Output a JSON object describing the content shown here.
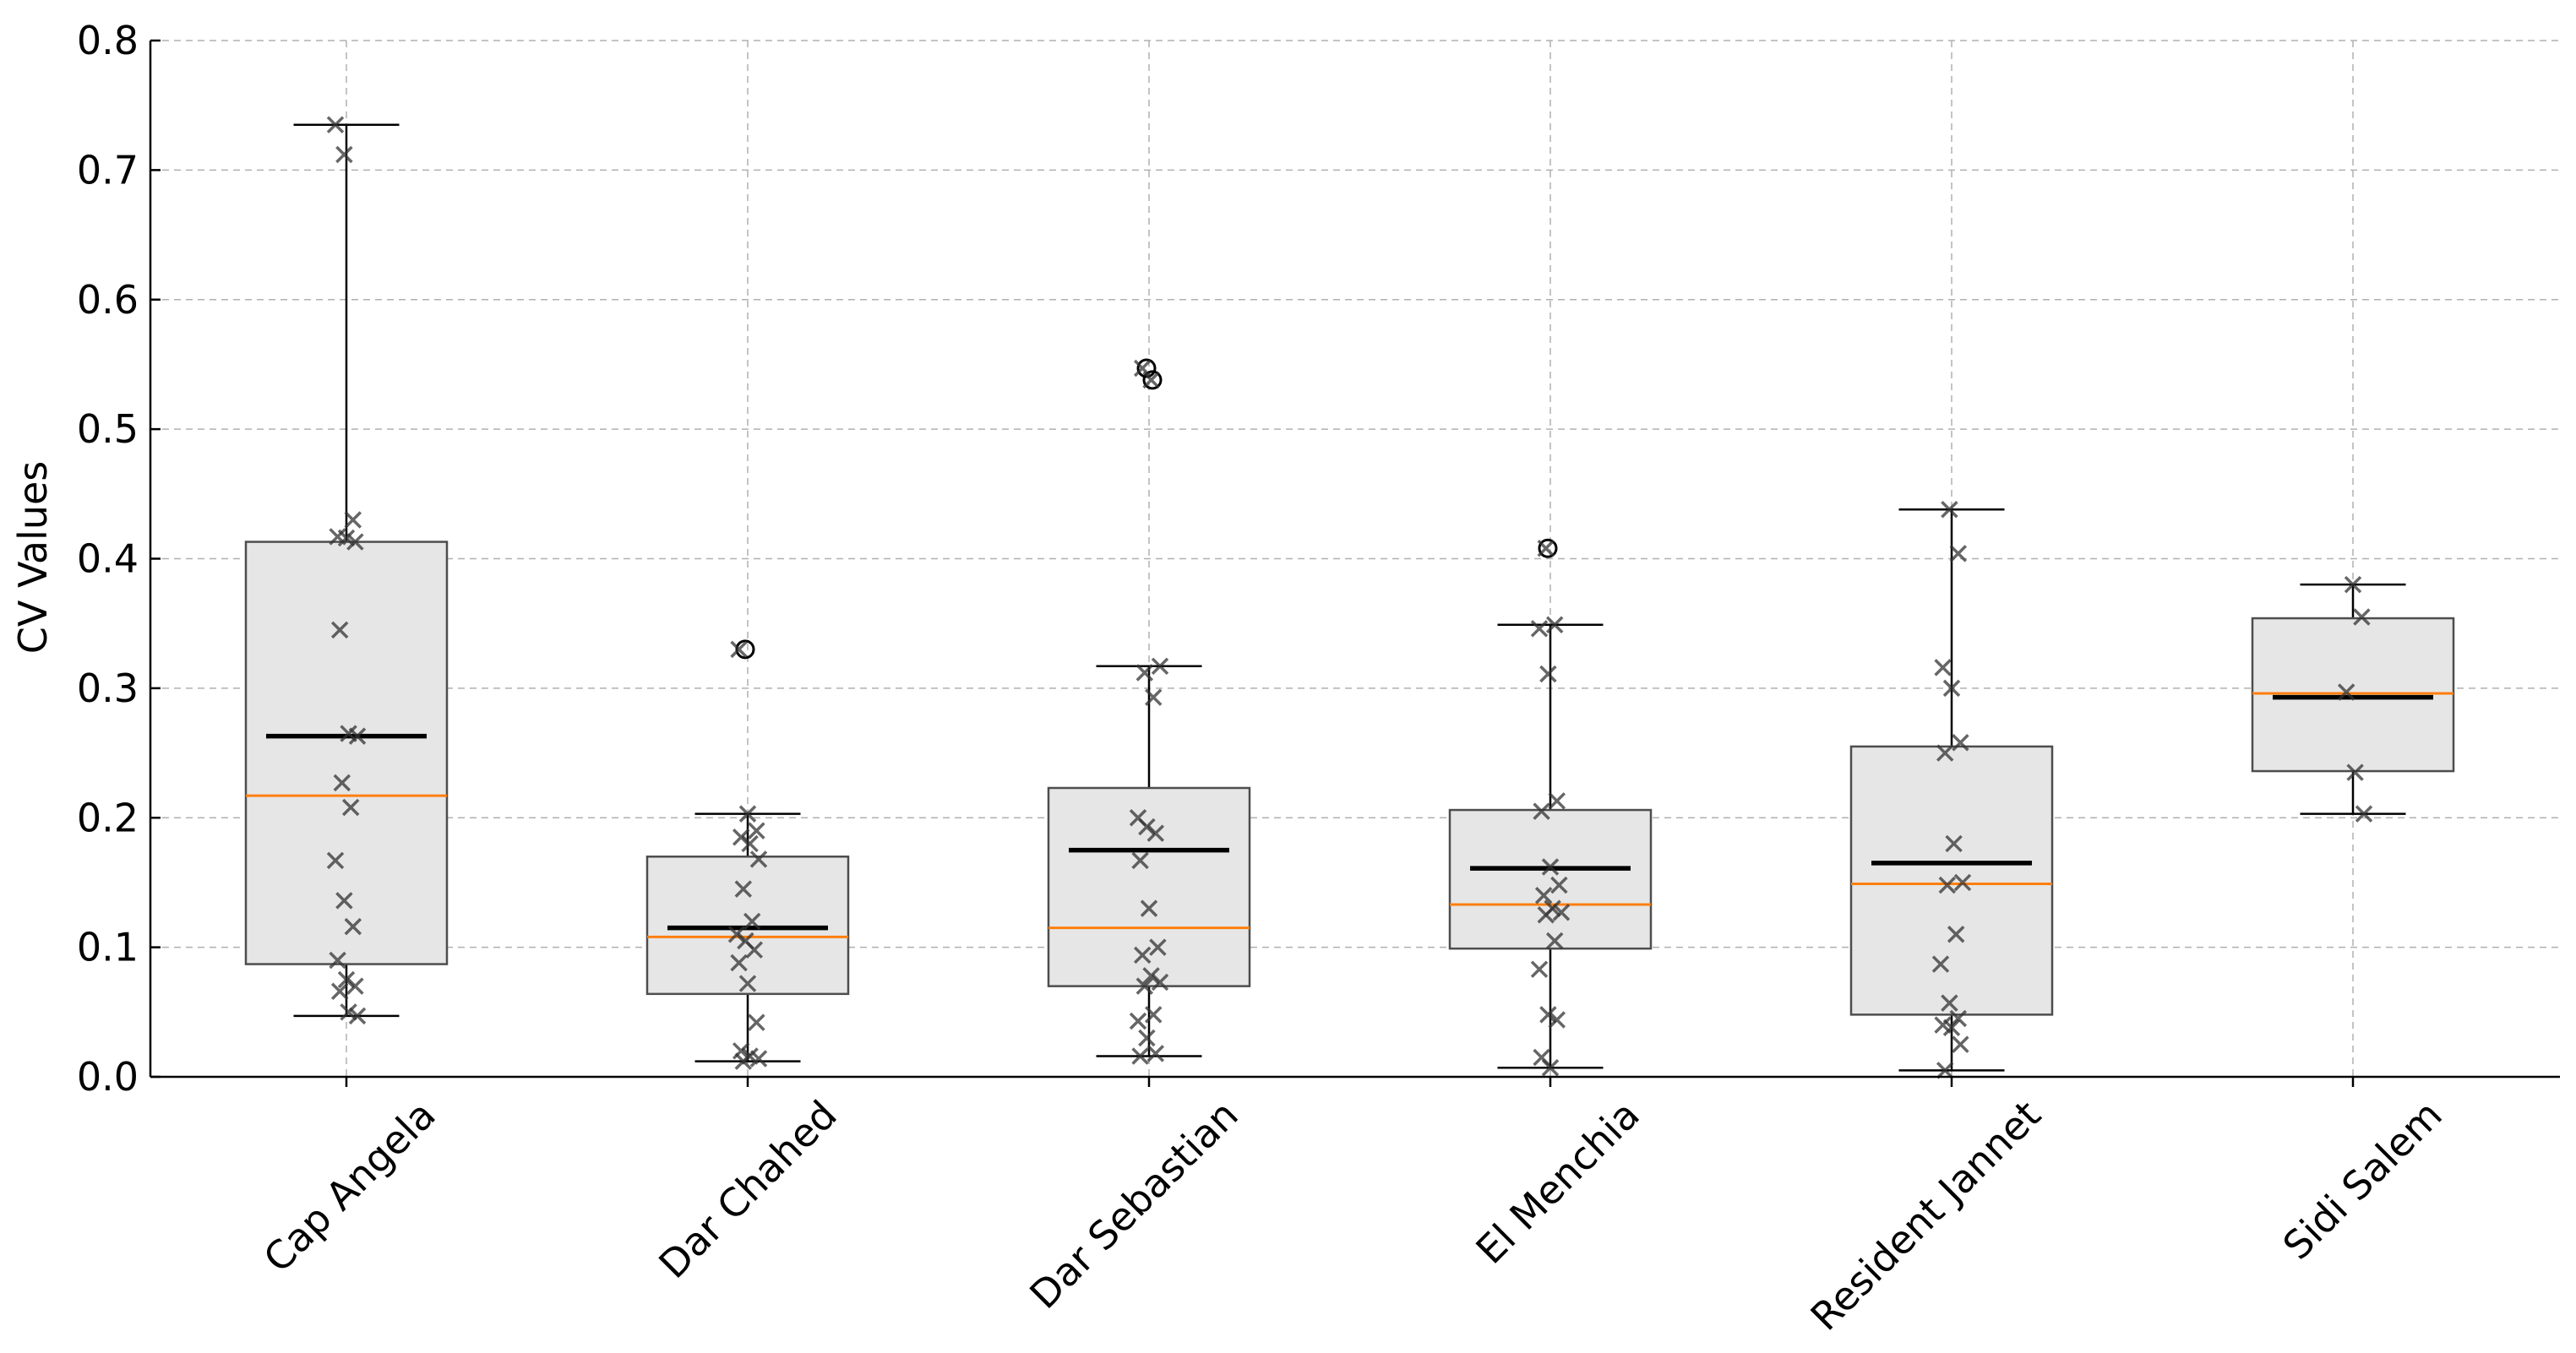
{
  "chart_data": {
    "type": "box",
    "title": "",
    "xlabel": "",
    "ylabel": "CV Values",
    "ylim": [
      0.0,
      0.8
    ],
    "yticks": [
      "0.0",
      "0.1",
      "0.2",
      "0.3",
      "0.4",
      "0.5",
      "0.6",
      "0.7",
      "0.8"
    ],
    "grid": true,
    "colors": {
      "box_fill": "#e6e6e6",
      "box_edge": "#4d4d4d",
      "median": "#ff7f0e",
      "mean": "#000000",
      "points": "#333333"
    },
    "categories": [
      "Cap Angela",
      "Dar Chahed",
      "Dar Sebastian",
      "El Menchia",
      "Resident Jannet",
      "Sidi Salem"
    ],
    "boxes": [
      {
        "label": "Cap Angela",
        "whisker_low": 0.047,
        "q1": 0.087,
        "median": 0.217,
        "q3": 0.413,
        "whisker_high": 0.735,
        "mean": 0.263,
        "outliers": [],
        "points": [
          0.735,
          0.712,
          0.43,
          0.417,
          0.416,
          0.413,
          0.345,
          0.265,
          0.263,
          0.227,
          0.208,
          0.167,
          0.136,
          0.116,
          0.09,
          0.075,
          0.07,
          0.066,
          0.05,
          0.047
        ]
      },
      {
        "label": "Dar Chahed",
        "whisker_low": 0.012,
        "q1": 0.064,
        "median": 0.108,
        "q3": 0.17,
        "whisker_high": 0.203,
        "mean": 0.115,
        "outliers": [
          0.33
        ],
        "points": [
          0.33,
          0.203,
          0.19,
          0.185,
          0.18,
          0.168,
          0.145,
          0.12,
          0.11,
          0.105,
          0.098,
          0.088,
          0.072,
          0.042,
          0.02,
          0.016,
          0.014,
          0.012
        ]
      },
      {
        "label": "Dar Sebastian",
        "whisker_low": 0.016,
        "q1": 0.07,
        "median": 0.115,
        "q3": 0.223,
        "whisker_high": 0.317,
        "mean": 0.175,
        "outliers": [
          0.547,
          0.538
        ],
        "points": [
          0.547,
          0.538,
          0.317,
          0.312,
          0.293,
          0.2,
          0.193,
          0.188,
          0.167,
          0.13,
          0.1,
          0.094,
          0.078,
          0.073,
          0.07,
          0.048,
          0.043,
          0.03,
          0.018,
          0.016
        ]
      },
      {
        "label": "El Menchia",
        "whisker_low": 0.007,
        "q1": 0.099,
        "median": 0.133,
        "q3": 0.206,
        "whisker_high": 0.349,
        "mean": 0.161,
        "outliers": [
          0.408
        ],
        "points": [
          0.408,
          0.349,
          0.346,
          0.311,
          0.213,
          0.205,
          0.162,
          0.148,
          0.14,
          0.13,
          0.127,
          0.125,
          0.105,
          0.083,
          0.048,
          0.044,
          0.015,
          0.007
        ]
      },
      {
        "label": "Resident Jannet",
        "whisker_low": 0.005,
        "q1": 0.048,
        "median": 0.149,
        "q3": 0.255,
        "whisker_high": 0.438,
        "mean": 0.165,
        "outliers": [],
        "points": [
          0.438,
          0.404,
          0.316,
          0.3,
          0.258,
          0.25,
          0.18,
          0.15,
          0.148,
          0.11,
          0.087,
          0.057,
          0.045,
          0.04,
          0.038,
          0.025,
          0.005
        ]
      },
      {
        "label": "Sidi Salem",
        "whisker_low": 0.203,
        "q1": 0.236,
        "median": 0.296,
        "q3": 0.354,
        "whisker_high": 0.38,
        "mean": 0.293,
        "outliers": [],
        "points": [
          0.38,
          0.355,
          0.297,
          0.235,
          0.203
        ]
      }
    ]
  }
}
